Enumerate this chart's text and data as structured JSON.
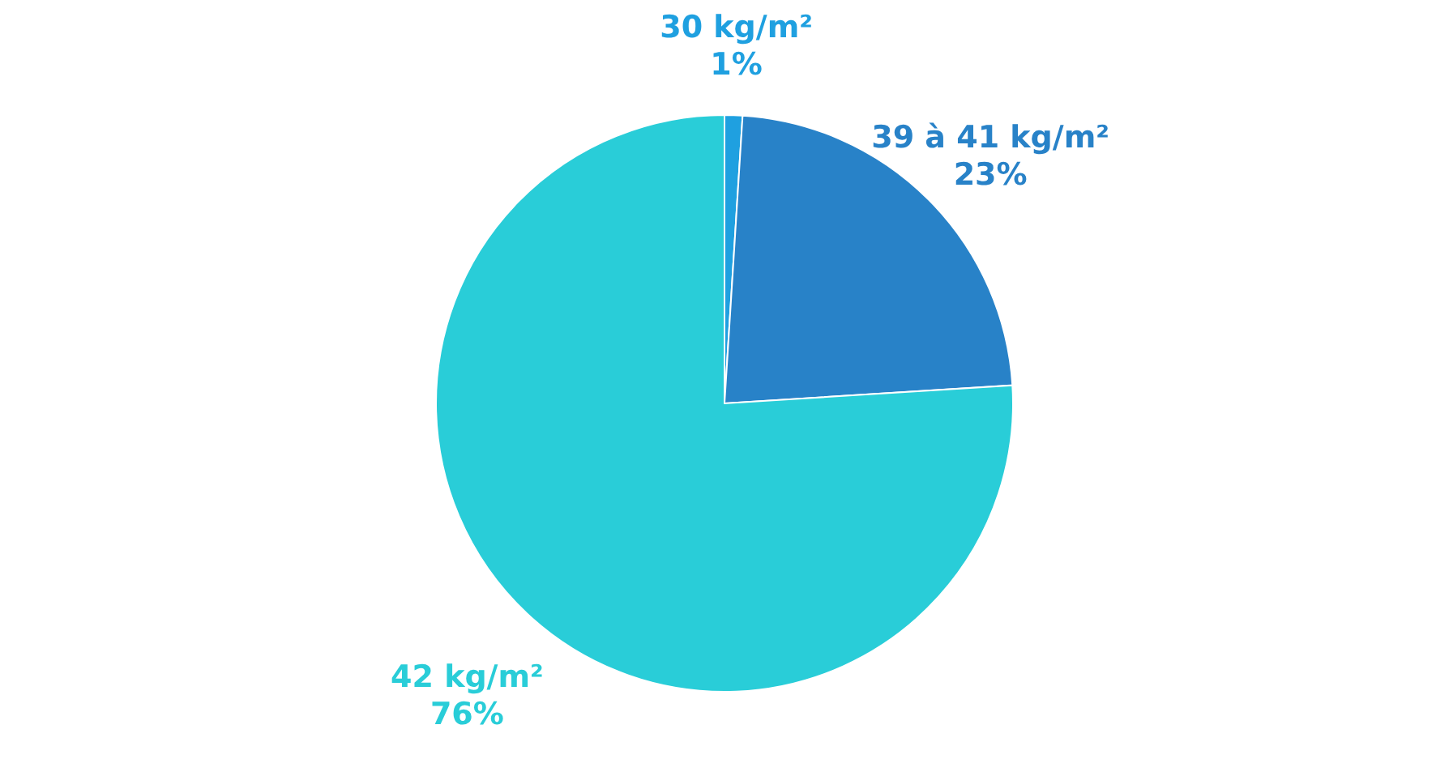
{
  "chart_data": {
    "type": "pie",
    "categories": [
      "30 kg/m²",
      "39 à 41 kg/m²",
      "42 kg/m²"
    ],
    "values": [
      1,
      23,
      76
    ],
    "value_labels": [
      "1%",
      "23%",
      "76%"
    ],
    "colors": [
      "#1fa0e0",
      "#2882c8",
      "#29cdd8"
    ],
    "legend": false
  }
}
